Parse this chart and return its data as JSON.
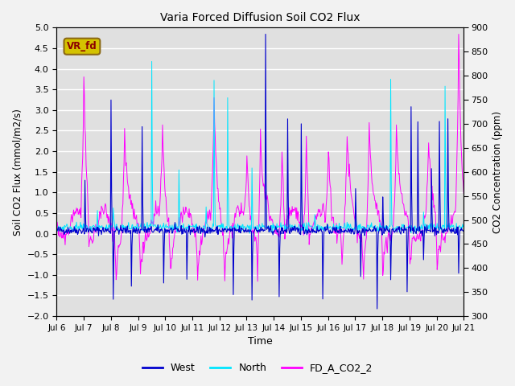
{
  "title": "Varia Forced Diffusion Soil CO2 Flux",
  "ylabel_left": "Soil CO2 Flux (mmol/m2/s)",
  "ylabel_right": "CO2 Concentration (ppm)",
  "xlabel": "Time",
  "ylim_left": [
    -2.0,
    5.0
  ],
  "ylim_right": [
    300,
    900
  ],
  "yticks_left": [
    -2.0,
    -1.5,
    -1.0,
    -0.5,
    0.0,
    0.5,
    1.0,
    1.5,
    2.0,
    2.5,
    3.0,
    3.5,
    4.0,
    4.5,
    5.0
  ],
  "yticks_right": [
    300,
    350,
    400,
    450,
    500,
    550,
    600,
    650,
    700,
    750,
    800,
    850,
    900
  ],
  "plot_bg_color": "#e0e0e0",
  "fig_bg_color": "#f2f2f2",
  "grid_color": "#ffffff",
  "west_color": "#0000cd",
  "north_color": "#00e5ff",
  "co2_color": "#ff00ff",
  "label_box_text": "VR_fd",
  "label_box_facecolor": "#d4c200",
  "label_box_edgecolor": "#8b6914",
  "legend_labels": [
    "West",
    "North",
    "FD_A_CO2_2"
  ],
  "xlim": [
    0,
    15
  ],
  "n_days": 15,
  "points_per_day": 48
}
